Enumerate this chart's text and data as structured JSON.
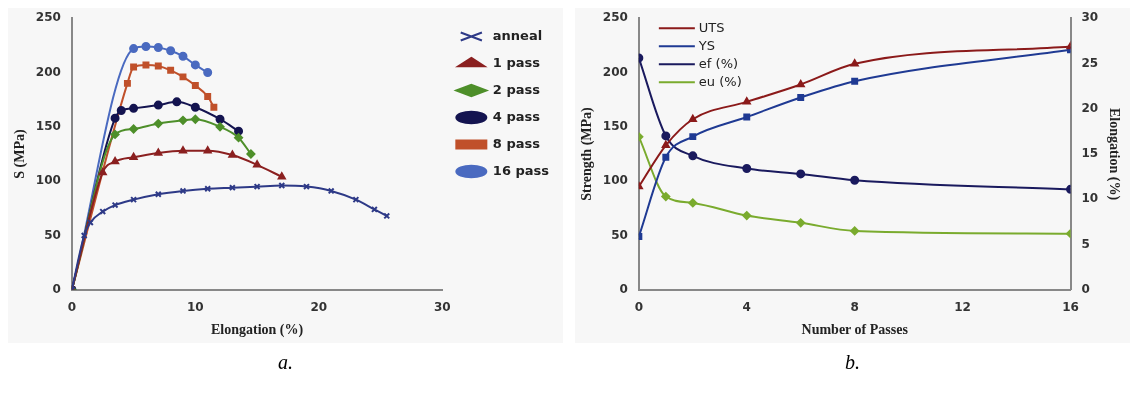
{
  "chart_data": [
    {
      "type": "line",
      "xlabel": "Elongation (%)",
      "ylabel": "S (MPa)",
      "xlim": [
        0,
        30
      ],
      "xticks": [
        0,
        10,
        20,
        30
      ],
      "ylim": [
        0,
        250
      ],
      "yticks": [
        0,
        50,
        100,
        150,
        200,
        250
      ],
      "grid": false,
      "legend": "right",
      "annotations": [
        "a."
      ],
      "series": [
        {
          "name": "anneal",
          "color": "#2e3a87",
          "marker": "cross",
          "x": [
            0,
            1,
            1.5,
            2.5,
            3.5,
            5,
            7,
            9,
            11,
            13,
            15,
            17,
            19,
            21,
            23,
            24.5,
            25.5
          ],
          "values": [
            0,
            50,
            62,
            72,
            78,
            83,
            88,
            91,
            93,
            94,
            95,
            96,
            95,
            91,
            83,
            74,
            68
          ]
        },
        {
          "name": "1 pass",
          "color": "#8b2020",
          "marker": "triangle",
          "x": [
            0,
            2.5,
            3.5,
            5,
            7,
            9,
            11,
            13,
            15,
            17
          ],
          "values": [
            0,
            108,
            118,
            122,
            126,
            128,
            128,
            124,
            115,
            104
          ]
        },
        {
          "name": "2 pass",
          "color": "#4e8f2a",
          "marker": "diamond",
          "x": [
            0,
            3.5,
            5,
            7,
            9,
            10,
            12,
            13.5,
            14.5
          ],
          "values": [
            0,
            143,
            148,
            153,
            156,
            157,
            150,
            140,
            125
          ]
        },
        {
          "name": "4 pass",
          "color": "#141450",
          "marker": "circle",
          "x": [
            0,
            3.5,
            4,
            5,
            7,
            8.5,
            10,
            12,
            13.5
          ],
          "values": [
            0,
            158,
            165,
            167,
            170,
            173,
            168,
            157,
            146
          ]
        },
        {
          "name": "8 pass",
          "color": "#c0502a",
          "marker": "square",
          "x": [
            0,
            4.5,
            5,
            6,
            7,
            8,
            9,
            10,
            11,
            11.5
          ],
          "values": [
            0,
            190,
            205,
            207,
            206,
            202,
            196,
            188,
            178,
            168
          ]
        },
        {
          "name": "16 pass",
          "color": "#4a6ac0",
          "marker": "circle",
          "x": [
            0,
            5,
            6,
            7,
            8,
            9,
            10,
            11
          ],
          "values": [
            0,
            222,
            224,
            223,
            220,
            215,
            207,
            200
          ]
        }
      ]
    },
    {
      "type": "line",
      "xlabel": "Number of Passes",
      "ylabel": "Strength (MPa)",
      "y2label": "Elongation (%)",
      "x": [
        0,
        1,
        2,
        4,
        6,
        8,
        16
      ],
      "xlim": [
        0,
        16
      ],
      "xticks": [
        0,
        4,
        8,
        12,
        16
      ],
      "ylim": [
        0,
        250
      ],
      "yticks": [
        0,
        50,
        100,
        150,
        200,
        250
      ],
      "y2lim": [
        0,
        30
      ],
      "y2ticks": [
        0,
        5,
        10,
        15,
        20,
        25,
        30
      ],
      "grid": false,
      "legend": "top left",
      "annotations": [
        "b."
      ],
      "series": [
        {
          "name": "UTS",
          "color": "#8b1a1a",
          "marker": "triangle",
          "values": [
            95,
            133,
            157,
            173,
            189,
            208,
            224
          ]
        },
        {
          "name": "YS",
          "color": "#1f3a93",
          "marker": "square",
          "values": [
            49,
            122,
            141,
            159,
            177,
            192,
            221
          ]
        },
        {
          "name": "ef (%)",
          "color": "#1a1a5e",
          "marker": "circle",
          "axis": "y2",
          "values": [
            25.6,
            17,
            14.8,
            13.4,
            12.8,
            12.1,
            11.1
          ]
        },
        {
          "name": "eu (%)",
          "color": "#7aab2e",
          "marker": "diamond",
          "axis": "y2",
          "values": [
            16.9,
            10.3,
            9.6,
            8.2,
            7.4,
            6.5,
            6.2
          ]
        }
      ]
    }
  ]
}
